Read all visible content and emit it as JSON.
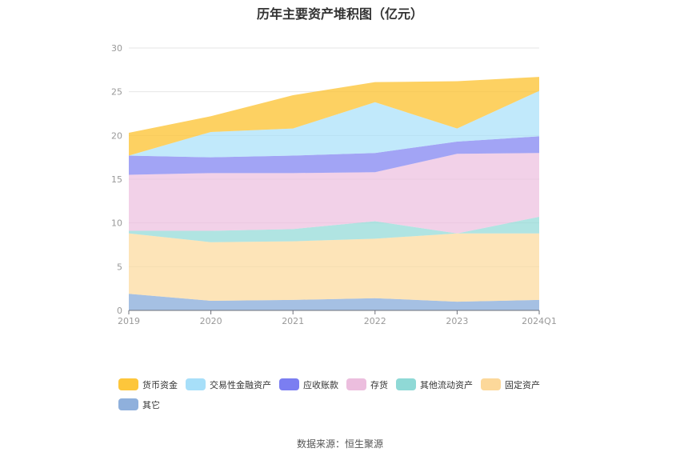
{
  "chart_data": {
    "type": "area",
    "stacked": true,
    "title": "历年主要资产堆积图（亿元）",
    "source": "数据来源：恒生聚源",
    "x": [
      "2019",
      "2020",
      "2021",
      "2022",
      "2023",
      "2024Q1"
    ],
    "ylim": [
      0,
      30
    ],
    "yticks": [
      0,
      5,
      10,
      15,
      20,
      25,
      30
    ],
    "grid": true,
    "legend_position": "bottom",
    "series": [
      {
        "name": "其它",
        "color": "#8fb0dc",
        "values": [
          1.9,
          1.1,
          1.2,
          1.4,
          1.0,
          1.2
        ]
      },
      {
        "name": "固定资产",
        "color": "#fcd89a",
        "values": [
          6.9,
          6.7,
          6.7,
          6.8,
          7.8,
          7.6
        ]
      },
      {
        "name": "其他流动资产",
        "color": "#8fd9d6",
        "values": [
          0.3,
          1.3,
          1.4,
          2.0,
          0.0,
          1.9
        ]
      },
      {
        "name": "存货",
        "color": "#ecbede",
        "values": [
          6.4,
          6.6,
          6.4,
          5.6,
          9.1,
          7.3
        ]
      },
      {
        "name": "应收账款",
        "color": "#7b7ef1",
        "values": [
          2.2,
          1.8,
          2.0,
          2.2,
          1.4,
          1.9
        ]
      },
      {
        "name": "交易性金融资产",
        "color": "#a7dff9",
        "values": [
          0.0,
          2.9,
          3.1,
          5.8,
          1.5,
          5.2
        ]
      },
      {
        "name": "货币资金",
        "color": "#fdc63b",
        "values": [
          2.6,
          1.8,
          3.8,
          2.3,
          5.4,
          1.6
        ]
      }
    ]
  },
  "legend": [
    {
      "name": "货币资金",
      "color": "#fdc63b"
    },
    {
      "name": "交易性金融资产",
      "color": "#a7dff9"
    },
    {
      "name": "应收账款",
      "color": "#7b7ef1"
    },
    {
      "name": "存货",
      "color": "#ecbede"
    },
    {
      "name": "其他流动资产",
      "color": "#8fd9d6"
    },
    {
      "name": "固定资产",
      "color": "#fcd89a"
    },
    {
      "name": "其它",
      "color": "#8fb0dc"
    }
  ]
}
